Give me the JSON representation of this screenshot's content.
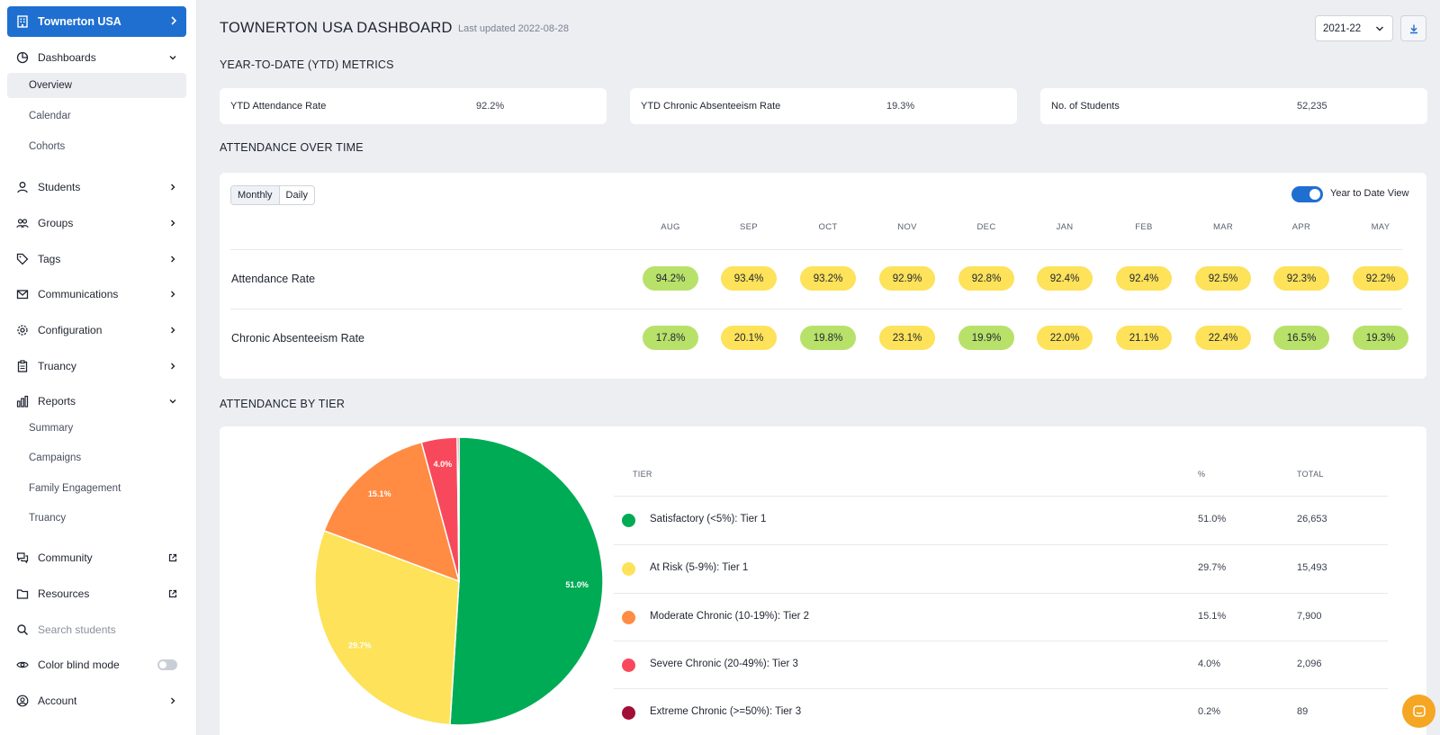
{
  "sidebar": {
    "org": "Townerton USA",
    "dashboards": "Dashboards",
    "dashboard_items": [
      "Overview",
      "Calendar",
      "Cohorts"
    ],
    "students": "Students",
    "groups": "Groups",
    "tags": "Tags",
    "communications": "Communications",
    "configuration": "Configuration",
    "truancy": "Truancy",
    "reports": "Reports",
    "report_items": [
      "Summary",
      "Campaigns",
      "Family Engagement",
      "Truancy"
    ],
    "community": "Community",
    "resources": "Resources",
    "search_placeholder": "Search students",
    "color_blind": "Color blind mode",
    "account": "Account"
  },
  "header": {
    "title": "TOWNERTON USA DASHBOARD",
    "updated": "Last updated 2022-08-28",
    "year": "2021-22"
  },
  "ytd": {
    "section": "YEAR-TO-DATE (YTD) METRICS",
    "cards": [
      {
        "label": "YTD Attendance Rate",
        "value": "92.2%"
      },
      {
        "label": "YTD Chronic Absenteeism Rate",
        "value": "19.3%"
      },
      {
        "label": "No. of Students",
        "value": "52,235"
      }
    ]
  },
  "over_time": {
    "section": "ATTENDANCE OVER TIME",
    "seg": [
      "Monthly",
      "Daily"
    ],
    "toggle_label": "Year to Date View",
    "months": [
      "AUG",
      "SEP",
      "OCT",
      "NOV",
      "DEC",
      "JAN",
      "FEB",
      "MAR",
      "APR",
      "MAY"
    ],
    "rows": [
      {
        "label": "Attendance Rate",
        "values": [
          "94.2%",
          "93.4%",
          "93.2%",
          "92.9%",
          "92.8%",
          "92.4%",
          "92.4%",
          "92.5%",
          "92.3%",
          "92.2%"
        ],
        "status": [
          "g",
          "y",
          "y",
          "y",
          "y",
          "y",
          "y",
          "y",
          "y",
          "y"
        ]
      },
      {
        "label": "Chronic Absenteeism Rate",
        "values": [
          "17.8%",
          "20.1%",
          "19.8%",
          "23.1%",
          "19.9%",
          "22.0%",
          "21.1%",
          "22.4%",
          "16.5%",
          "19.3%"
        ],
        "status": [
          "g",
          "y",
          "g",
          "y",
          "g",
          "y",
          "y",
          "y",
          "g",
          "g"
        ]
      }
    ],
    "colors": {
      "g": "#b8e16a",
      "y": "#fde25a"
    }
  },
  "tier": {
    "section": "ATTENDANCE BY TIER",
    "headers": {
      "tier": "TIER",
      "pct": "%",
      "total": "TOTAL"
    },
    "rows": [
      {
        "name": "Satisfactory (<5%): Tier 1",
        "pct": "51.0%",
        "total": "26,653",
        "color": "#00ab55"
      },
      {
        "name": "At Risk (5-9%): Tier 1",
        "pct": "29.7%",
        "total": "15,493",
        "color": "#fde25a"
      },
      {
        "name": "Moderate Chronic (10-19%): Tier 2",
        "pct": "15.1%",
        "total": "7,900",
        "color": "#ff8c42"
      },
      {
        "name": "Severe Chronic (20-49%): Tier 3",
        "pct": "4.0%",
        "total": "2,096",
        "color": "#f8495c"
      },
      {
        "name": "Extreme Chronic (>=50%): Tier 3",
        "pct": "0.2%",
        "total": "89",
        "color": "#a10f36"
      }
    ]
  },
  "chart_data": {
    "type": "pie",
    "title": "Attendance by Tier",
    "categories": [
      "Satisfactory (<5%): Tier 1",
      "At Risk (5-9%): Tier 1",
      "Moderate Chronic (10-19%): Tier 2",
      "Severe Chronic (20-49%): Tier 3",
      "Extreme Chronic (>=50%): Tier 3"
    ],
    "values": [
      51.0,
      29.7,
      15.1,
      4.0,
      0.2
    ],
    "labels": [
      "51.0%",
      "29.7%",
      "15.1%",
      "4.0%",
      ""
    ],
    "colors": [
      "#00ab55",
      "#fde25a",
      "#ff8c42",
      "#f8495c",
      "#a10f36"
    ]
  }
}
